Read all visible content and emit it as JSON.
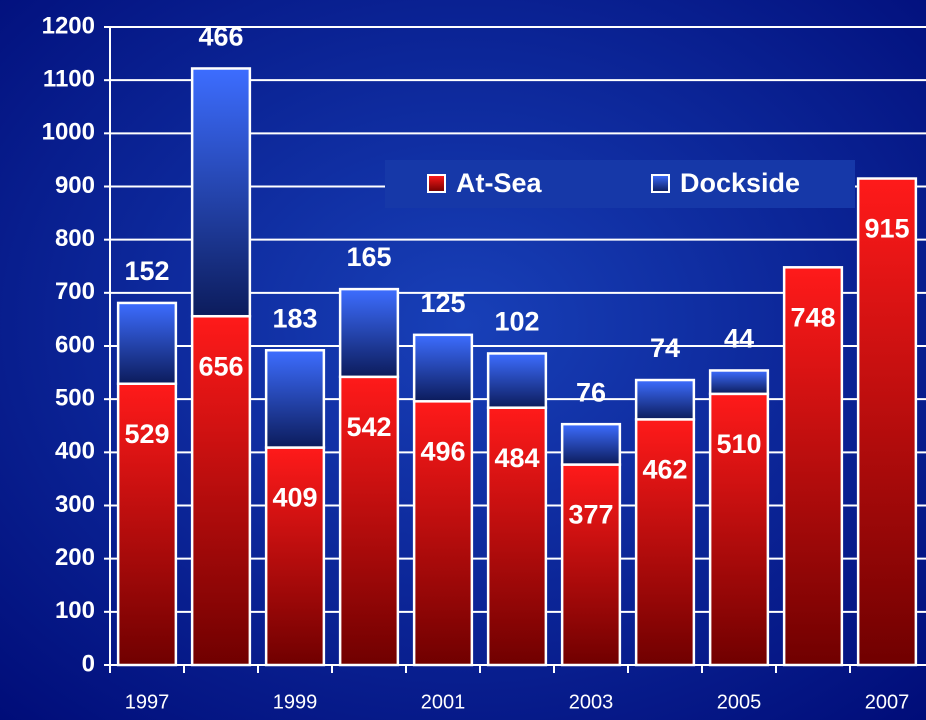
{
  "chart_data": {
    "type": "stacked_bar",
    "categories": [
      "1997",
      null,
      "1999",
      null,
      "2001",
      null,
      "2003",
      null,
      "2005",
      null,
      "2007"
    ],
    "series": [
      {
        "name": "At-Sea",
        "color": "#ff1a1a",
        "values": [
          529,
          656,
          409,
          542,
          496,
          484,
          377,
          462,
          510,
          748,
          915
        ]
      },
      {
        "name": "Dockside",
        "color": "#3d6dff",
        "values": [
          152,
          466,
          183,
          165,
          125,
          102,
          76,
          74,
          44,
          null,
          null
        ]
      }
    ],
    "ylim": [
      0,
      1200
    ],
    "yticks": [
      0,
      100,
      200,
      300,
      400,
      500,
      600,
      700,
      800,
      900,
      1000,
      1100,
      1200
    ],
    "grid": true
  }
}
